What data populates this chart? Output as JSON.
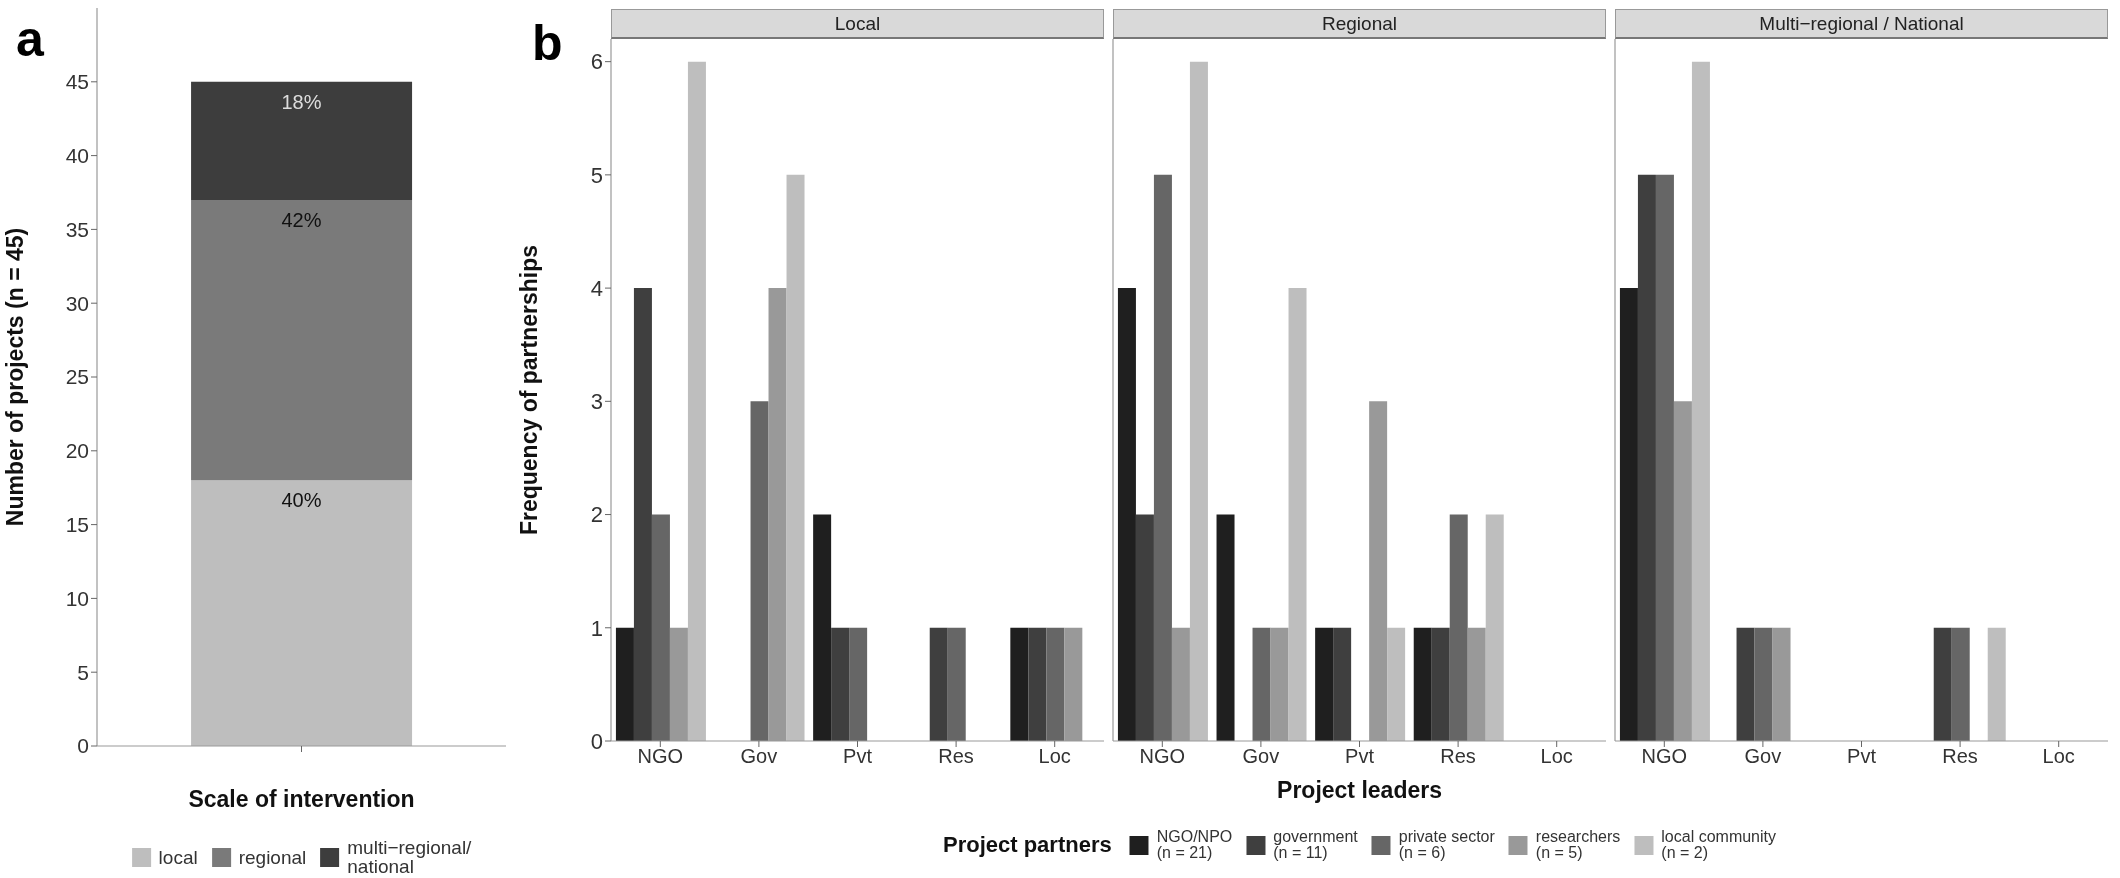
{
  "chart_data": [
    {
      "type": "bar",
      "stacked": true,
      "categories": [
        null
      ],
      "ylabel": "Number of projects (n = 45)",
      "xlabel": "Scale of intervention",
      "ylim": [
        0,
        50
      ],
      "yticks": [
        0,
        5,
        10,
        15,
        20,
        25,
        30,
        35,
        40,
        45
      ],
      "grid": false,
      "legend": "bottom",
      "annotations": [
        "a",
        {
          "text": "40%",
          "y": 18
        },
        {
          "text": "42%",
          "y": 37
        },
        {
          "text": "18%",
          "y": 45
        }
      ],
      "series": [
        {
          "name": "local",
          "color": "#bebebe",
          "values": [
            18
          ]
        },
        {
          "name": "regional",
          "color": "#7a7a7a",
          "values": [
            19
          ]
        },
        {
          "name": "multi−regional/\nnational",
          "color": "#3d3d3d",
          "values": [
            8
          ]
        }
      ]
    },
    {
      "type": "bar",
      "title": "Local",
      "categories": [
        "NGO",
        "Gov",
        "Pvt",
        "Res",
        "Loc"
      ],
      "ylabel": "Frequency of partnerships",
      "ylim": [
        0,
        6.2
      ],
      "yticks": [
        0,
        1,
        2,
        3,
        4,
        5,
        6
      ],
      "grid": false,
      "annotations": [
        "b"
      ],
      "series": [
        {
          "color": "#1f1f1f",
          "values": [
            1,
            null,
            2,
            null,
            1
          ]
        },
        {
          "color": "#3f3f3f",
          "values": [
            4,
            null,
            1,
            1,
            1
          ]
        },
        {
          "color": "#666666",
          "values": [
            2,
            3,
            1,
            1,
            1
          ]
        },
        {
          "color": "#999999",
          "values": [
            1,
            4,
            null,
            null,
            1
          ]
        },
        {
          "color": "#bebebe",
          "values": [
            6,
            5,
            null,
            null,
            null
          ]
        }
      ]
    },
    {
      "type": "bar",
      "title": "Regional",
      "categories": [
        "NGO",
        "Gov",
        "Pvt",
        "Res",
        "Loc"
      ],
      "xlabel": "Project leaders",
      "ylim": [
        0,
        6.2
      ],
      "yticks": [
        0,
        1,
        2,
        3,
        4,
        5,
        6
      ],
      "grid": false,
      "tick_labels": "x",
      "legend": "bottom",
      "legend_title": "Project partners",
      "series": [
        {
          "name": "NGO/NPO\n(n = 21)",
          "color": "#1f1f1f",
          "values": [
            4,
            2,
            1,
            1,
            null
          ]
        },
        {
          "name": "government\n(n = 11)",
          "color": "#3f3f3f",
          "values": [
            2,
            null,
            1,
            1,
            null
          ]
        },
        {
          "name": "private sector\n(n = 6)",
          "color": "#666666",
          "values": [
            5,
            1,
            null,
            2,
            null
          ]
        },
        {
          "name": "researchers\n(n = 5)",
          "color": "#999999",
          "values": [
            1,
            1,
            3,
            1,
            null
          ]
        },
        {
          "name": "local community\n(n = 2)",
          "color": "#bebebe",
          "values": [
            6,
            4,
            1,
            2,
            null
          ]
        }
      ]
    },
    {
      "type": "bar",
      "title": "Multi−regional / National",
      "categories": [
        "NGO",
        "Gov",
        "Pvt",
        "Res",
        "Loc"
      ],
      "ylim": [
        0,
        6.2
      ],
      "yticks": [
        0,
        1,
        2,
        3,
        4,
        5,
        6
      ],
      "grid": false,
      "tick_labels": "x",
      "series": [
        {
          "color": "#1f1f1f",
          "values": [
            4,
            null,
            null,
            null,
            null
          ]
        },
        {
          "color": "#3f3f3f",
          "values": [
            5,
            1,
            null,
            1,
            null
          ]
        },
        {
          "color": "#666666",
          "values": [
            5,
            1,
            null,
            1,
            null
          ]
        },
        {
          "color": "#999999",
          "values": [
            3,
            1,
            null,
            null,
            null
          ]
        },
        {
          "color": "#bebebe",
          "values": [
            6,
            null,
            null,
            1,
            null
          ]
        }
      ]
    }
  ]
}
